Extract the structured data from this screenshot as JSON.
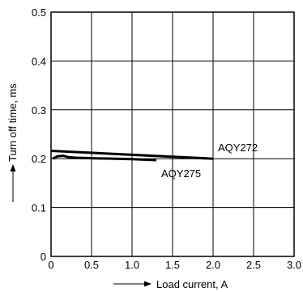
{
  "chart_data": {
    "type": "line",
    "title": "",
    "xlabel": "Load current, A",
    "ylabel": "Turn off time, ms",
    "xlim": [
      0,
      3.0
    ],
    "ylim": [
      0,
      0.5
    ],
    "x_ticks": [
      "0",
      "0.5",
      "1.0",
      "1.5",
      "2.0",
      "2.5",
      "3.0"
    ],
    "y_ticks": [
      "0",
      "0.1",
      "0.2",
      "0.3",
      "0.4",
      "0.5"
    ],
    "grid": true,
    "legend": "none",
    "series": [
      {
        "name": "AQY272",
        "x": [
          0,
          2.0
        ],
        "y": [
          0.216,
          0.2
        ]
      },
      {
        "name": "AQY275",
        "x": [
          0.02,
          0.08,
          0.15,
          0.22,
          0.3,
          0.5,
          1.0,
          1.3
        ],
        "y": [
          0.2,
          0.205,
          0.206,
          0.203,
          0.202,
          0.201,
          0.199,
          0.197
        ]
      }
    ]
  }
}
